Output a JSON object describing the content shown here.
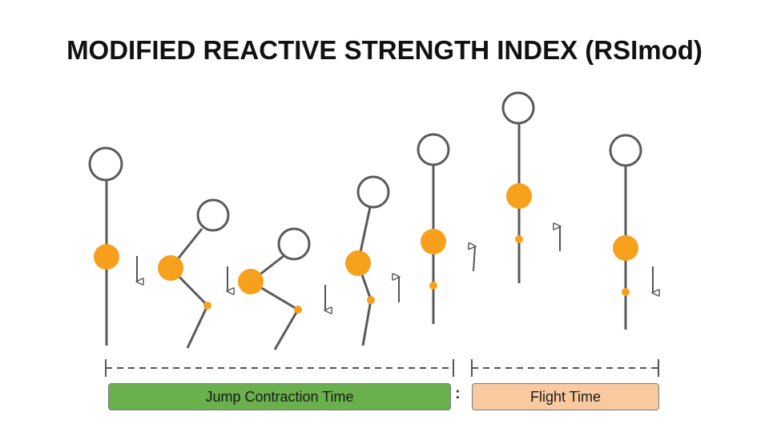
{
  "title": "MODIFIED REACTIVE STRENGTH INDEX (RSImod)",
  "phases": {
    "jump_contraction_label": "Jump Contraction Time",
    "separator": ":",
    "flight_label": "Flight Time"
  },
  "colors": {
    "stroke": "#5a5a5a",
    "joint": "#f7a01c",
    "jump_contraction_fill": "#6ab04c",
    "flight_fill": "#f9c9a0"
  },
  "icons": [
    "stick-figure",
    "arrow-up-icon",
    "arrow-down-icon"
  ]
}
